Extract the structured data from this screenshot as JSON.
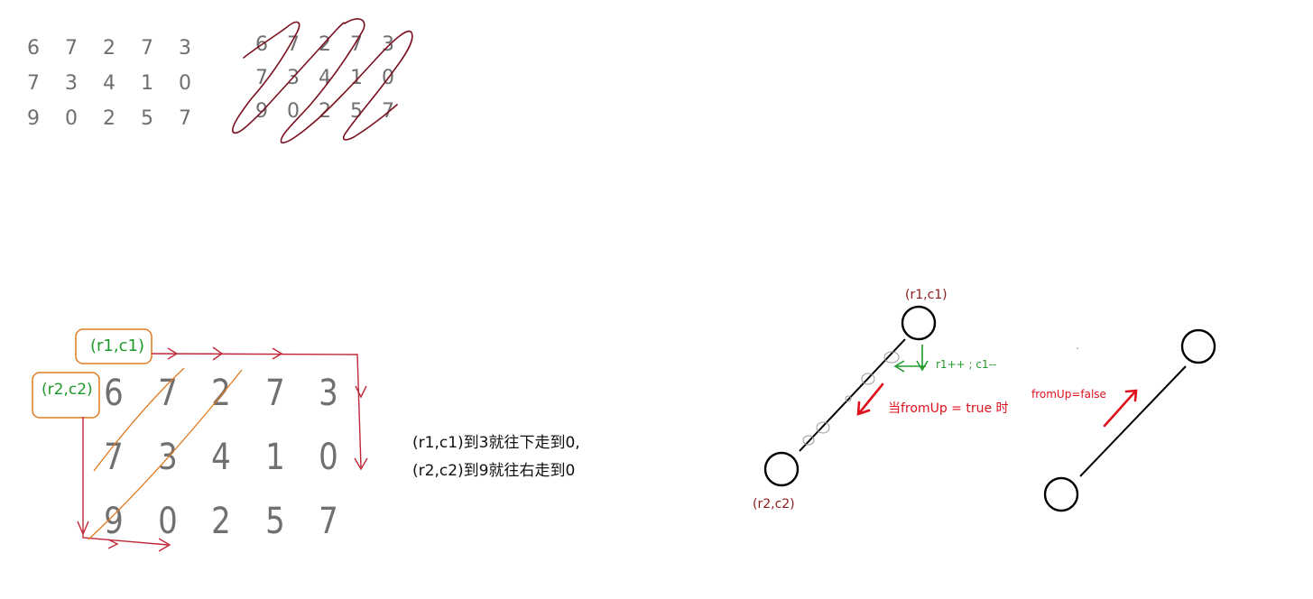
{
  "matrix": [
    [
      "6",
      "7",
      "2",
      "7",
      "3"
    ],
    [
      "7",
      "3",
      "4",
      "1",
      "0"
    ],
    [
      "9",
      "0",
      "2",
      "5",
      "7"
    ]
  ],
  "labels": {
    "r1c1": "(r1,c1)",
    "r2c2": "(r2,c2)",
    "note_line1": "(r1,c1)到3就往下走到0,",
    "note_line2": "(r2,c2)到9就往右走到0",
    "move_rule": "r1++ ; c1--",
    "from_up_true": "当fromUp = true 时",
    "from_up_false": "fromUp=false"
  },
  "colors": {
    "digit_gray": "#6f6f6f",
    "scribble_maroon": "#7a1020",
    "path_red": "#c0283a",
    "orange": "#e07a1e",
    "green": "#1f9a2a",
    "dark_red_label": "#8b1a1a",
    "arrow_red": "#e0101c",
    "black": "#000000"
  }
}
